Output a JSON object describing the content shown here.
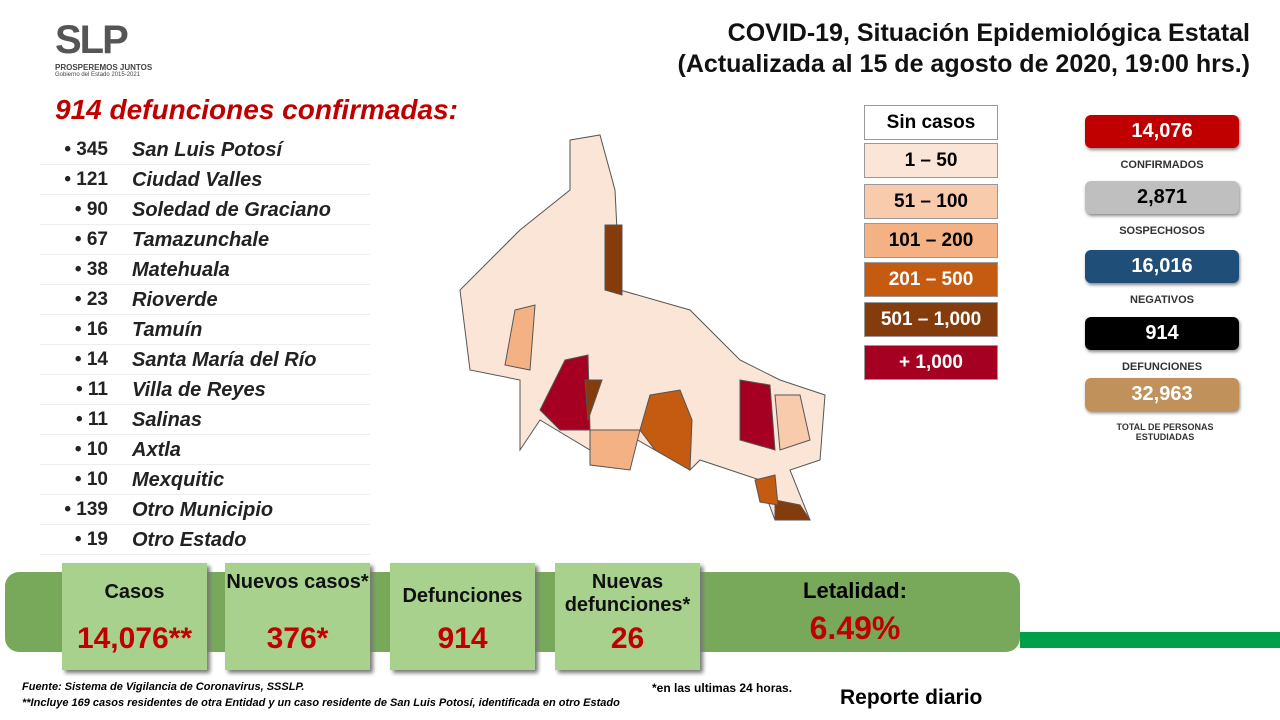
{
  "header": {
    "logo": "SLP",
    "logo_tagline": "PROSPEREMOS JUNTOS",
    "logo_subtitle": "Gobierno del Estado 2015-2021",
    "title": "COVID-19, Situación Epidemiológica Estatal",
    "subtitle": "(Actualizada al 15 de agosto de 2020, 19:00 hrs.)"
  },
  "deaths": {
    "heading": "914 defunciones confirmadas:",
    "rows": [
      [
        "• 345",
        "San Luis Potosí"
      ],
      [
        "• 121",
        "Ciudad Valles"
      ],
      [
        "• 90",
        "Soledad de Graciano"
      ],
      [
        "• 67",
        "Tamazunchale"
      ],
      [
        "• 38",
        "Matehuala"
      ],
      [
        "• 23",
        "Rioverde"
      ],
      [
        "• 16",
        "Tamuín"
      ],
      [
        "• 14",
        "Santa María del Río"
      ],
      [
        "• 11",
        "Villa de Reyes"
      ],
      [
        "• 11",
        "Salinas"
      ],
      [
        "• 10",
        "Axtla"
      ],
      [
        "• 10",
        "Mexquitic"
      ],
      [
        "• 139",
        "Otro Municipio"
      ],
      [
        "• 19",
        "Otro Estado"
      ]
    ]
  },
  "legend": [
    "Sin casos",
    "1 – 50",
    "51 – 100",
    "101 – 200",
    "201 – 500",
    "501 – 1,000",
    "+ 1,000"
  ],
  "stats": [
    {
      "value": "14,076",
      "label": "CONFIRMADOS"
    },
    {
      "value": "2,871",
      "label": "SOSPECHOSOS"
    },
    {
      "value": "16,016",
      "label": "NEGATIVOS"
    },
    {
      "value": "914",
      "label": "DEFUNCIONES"
    },
    {
      "value": "32,963",
      "label": "TOTAL DE PERSONAS ESTUDIADAS"
    }
  ],
  "summary": [
    {
      "label": "Casos",
      "value": "14,076**"
    },
    {
      "label": "Nuevos casos*",
      "value": "376*"
    },
    {
      "label": "Defunciones",
      "value": "914"
    },
    {
      "label": "Nuevas defunciones*",
      "value": "26"
    },
    {
      "label": "Letalidad:",
      "value": "6.49%"
    }
  ],
  "footer": {
    "source": "Fuente: Sistema de Vigilancia de Coronavirus, SSSLP.",
    "note": "**Incluye 169 casos residentes de otra Entidad y un caso residente de San Luis Potosí, identificada en otro Estado",
    "last24": "*en las ultimas 24 horas.",
    "report": "Reporte diario"
  }
}
